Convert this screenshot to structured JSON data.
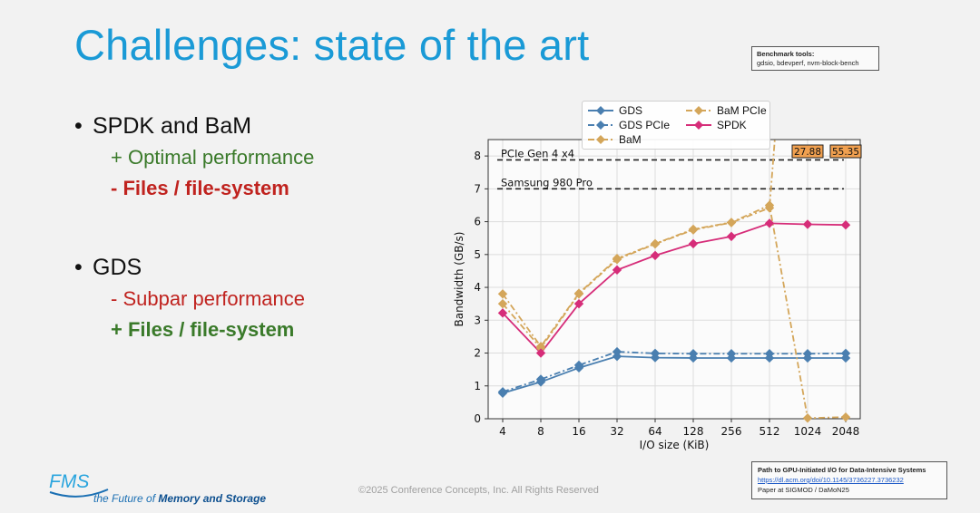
{
  "slide": {
    "title": "Challenges: state of the art",
    "benchmark_tools": {
      "heading": "Benchmark tools:",
      "tools": "gdsio, bdevperf, nvm-block-bench"
    },
    "bullets": [
      {
        "text": "SPDK and BaM",
        "subs": [
          {
            "text": "+ Optimal performance",
            "color": "#3a7a2a",
            "bold": false
          },
          {
            "text": "- Files / file-system",
            "color": "#c0231f",
            "bold": true
          }
        ]
      },
      {
        "text": "GDS",
        "subs": [
          {
            "text": "- Subpar performance",
            "color": "#c0231f",
            "bold": false
          },
          {
            "text": "+ Files / file-system",
            "color": "#3a7a2a",
            "bold": true
          }
        ]
      }
    ],
    "footer": {
      "logo_text": "FMS",
      "tagline_part1": "the Future of",
      "tagline_part2": "Memory and Storage",
      "copyright": "©2025 Conference Concepts, Inc. All Rights Reserved"
    },
    "paper_ref": {
      "title": "Path to GPU-Initiated I/O for Data-Intensive Systems",
      "url": "https://dl.acm.org/doi/10.1145/3736227.3736232",
      "venue": "Paper at SIGMOD / DaMoN25"
    }
  },
  "chart_data": {
    "type": "line",
    "xlabel": "I/O size (KiB)",
    "ylabel": "Bandwidth (GB/s)",
    "categories": [
      "4",
      "8",
      "16",
      "32",
      "64",
      "128",
      "256",
      "512",
      "1024",
      "2048"
    ],
    "ylim": [
      0,
      8.5
    ],
    "yticks": [
      0,
      1,
      2,
      3,
      4,
      5,
      6,
      7,
      8
    ],
    "grid": true,
    "reference_lines": [
      {
        "label": "PCIe Gen 4 x4",
        "value": 7.88
      },
      {
        "label": "Samsung 980 Pro",
        "value": 7.0
      }
    ],
    "series": [
      {
        "name": "GDS",
        "color": "#4a7fb0",
        "dash": "solid",
        "marker": "diamond",
        "values": [
          0.78,
          1.12,
          1.55,
          1.9,
          1.86,
          1.85,
          1.85,
          1.85,
          1.85,
          1.85
        ]
      },
      {
        "name": "GDS PCIe",
        "color": "#4a7fb0",
        "dash": "dashdot",
        "marker": "diamond",
        "values": [
          0.82,
          1.2,
          1.63,
          2.04,
          1.99,
          1.98,
          1.98,
          1.98,
          1.98,
          1.99
        ]
      },
      {
        "name": "BaM",
        "color": "#d4a65a",
        "dash": "dashdot",
        "marker": "diamond",
        "values": [
          3.5,
          2.15,
          3.8,
          4.85,
          5.32,
          5.75,
          5.97,
          6.42,
          null,
          null
        ],
        "offscale_after": [
          27.88,
          55.35
        ]
      },
      {
        "name": "BaM PCIe",
        "color": "#d4a65a",
        "dash": "dashdot",
        "marker": "diamond",
        "values": [
          3.8,
          2.2,
          3.82,
          4.88,
          5.33,
          5.77,
          5.98,
          6.5,
          0.02,
          0.05
        ]
      },
      {
        "name": "SPDK",
        "color": "#d62d79",
        "dash": "solid",
        "marker": "diamond",
        "values": [
          3.22,
          2.0,
          3.5,
          4.53,
          4.97,
          5.33,
          5.55,
          5.95,
          5.92,
          5.9
        ]
      }
    ],
    "annotations": [
      {
        "category": "1024",
        "text": "27.88"
      },
      {
        "category": "2048",
        "text": "55.35"
      }
    ],
    "legend": {
      "placement": "top",
      "entries": [
        "GDS",
        "GDS PCIe",
        "BaM",
        "BaM PCIe",
        "SPDK"
      ]
    }
  }
}
